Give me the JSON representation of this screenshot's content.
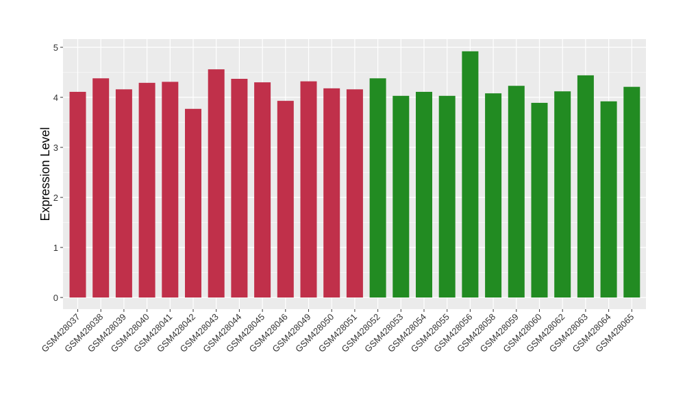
{
  "chart_data": {
    "type": "bar",
    "title": "",
    "xlabel": "",
    "ylabel": "Expression Level",
    "ylim": [
      0,
      5.2
    ],
    "yticks": [
      0,
      1,
      2,
      3,
      4,
      5
    ],
    "grid": true,
    "legend": "none",
    "categories": [
      "GSM428037",
      "GSM428038",
      "GSM428039",
      "GSM428040",
      "GSM428041",
      "GSM428042",
      "GSM428043",
      "GSM428044",
      "GSM428045",
      "GSM428046",
      "GSM428049",
      "GSM428050",
      "GSM428051",
      "GSM428052",
      "GSM428053",
      "GSM428054",
      "GSM428055",
      "GSM428056",
      "GSM428058",
      "GSM428059",
      "GSM428060",
      "GSM428062",
      "GSM428063",
      "GSM428064",
      "GSM428065"
    ],
    "values": [
      4.11,
      4.38,
      4.16,
      4.29,
      4.31,
      3.77,
      4.56,
      4.37,
      4.3,
      3.93,
      4.32,
      4.18,
      4.16,
      4.38,
      4.03,
      4.11,
      4.03,
      4.92,
      4.08,
      4.23,
      3.89,
      4.12,
      4.44,
      3.92,
      4.21
    ],
    "bar_colors": [
      "#c0304a",
      "#c0304a",
      "#c0304a",
      "#c0304a",
      "#c0304a",
      "#c0304a",
      "#c0304a",
      "#c0304a",
      "#c0304a",
      "#c0304a",
      "#c0304a",
      "#c0304a",
      "#c0304a",
      "#228b22",
      "#228b22",
      "#228b22",
      "#228b22",
      "#228b22",
      "#228b22",
      "#228b22",
      "#228b22",
      "#228b22",
      "#228b22",
      "#228b22",
      "#228b22"
    ],
    "panel_background": "#ebebeb",
    "grid_color": "#ffffff"
  }
}
